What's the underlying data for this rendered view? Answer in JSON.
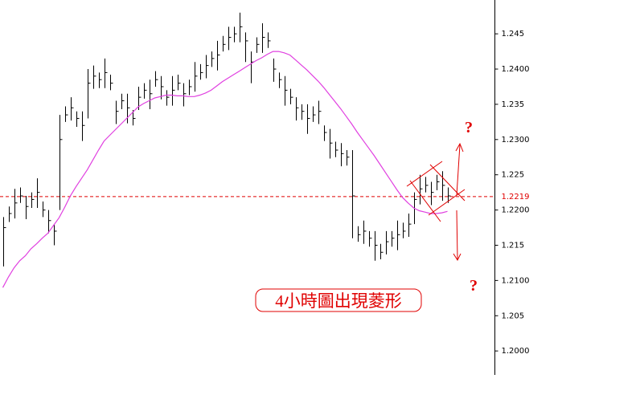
{
  "chart_data": {
    "type": "ohlc",
    "high": [
      1.219,
      1.2205,
      1.223,
      1.2232,
      1.222,
      1.2225,
      1.2245,
      1.2212,
      1.22,
      1.218,
      1.2335,
      1.2347,
      1.236,
      1.234,
      1.234,
      1.24,
      1.2405,
      1.2395,
      1.2415,
      1.2392,
      1.2355,
      1.2365,
      1.2365,
      1.2342,
      1.2375,
      1.238,
      1.2385,
      1.2397,
      1.239,
      1.237,
      1.239,
      1.2392,
      1.238,
      1.2385,
      1.241,
      1.2407,
      1.242,
      1.2425,
      1.244,
      1.2447,
      1.246,
      1.246,
      1.248,
      1.2452,
      1.2425,
      1.2445,
      1.2465,
      1.2452,
      1.2415,
      1.2395,
      1.239,
      1.2372,
      1.236,
      1.235,
      1.235,
      1.2347,
      1.2355,
      1.232,
      1.2315,
      1.2297,
      1.2295,
      1.2285,
      1.2285,
      1.2177,
      1.2185,
      1.217,
      1.217,
      1.2152,
      1.217,
      1.217,
      1.2185,
      1.2182,
      1.2195,
      1.2225,
      1.225,
      1.2247,
      1.224,
      1.225,
      1.2255,
      1.2232
    ],
    "low": [
      1.212,
      1.2183,
      1.2188,
      1.221,
      1.2187,
      1.2203,
      1.2203,
      1.219,
      1.2167,
      1.215,
      1.22,
      1.2325,
      1.2327,
      1.2318,
      1.2298,
      1.233,
      1.2372,
      1.2373,
      1.2373,
      1.237,
      1.2322,
      1.2343,
      1.2323,
      1.232,
      1.2342,
      1.2358,
      1.2343,
      1.2375,
      1.2357,
      1.2348,
      1.2348,
      1.237,
      1.2347,
      1.2363,
      1.2368,
      1.2385,
      1.2387,
      1.2403,
      1.2398,
      1.2425,
      1.2427,
      1.2438,
      1.2438,
      1.241,
      1.238,
      1.2423,
      1.2423,
      1.243,
      1.2382,
      1.2373,
      1.2348,
      1.235,
      1.2327,
      1.2328,
      1.2308,
      1.2325,
      1.2322,
      1.2298,
      1.2273,
      1.2275,
      1.2262,
      1.2263,
      1.216,
      1.2155,
      1.2152,
      1.2148,
      1.2128,
      1.213,
      1.2137,
      1.2148,
      1.2143,
      1.216,
      1.2162,
      1.218,
      1.2208,
      1.2225,
      1.2207,
      1.2228,
      1.2213,
      1.221
    ],
    "close": [
      1.2175,
      1.2195,
      1.221,
      1.222,
      1.2205,
      1.2215,
      1.2225,
      1.22,
      1.2185,
      1.217,
      1.23,
      1.2335,
      1.2345,
      1.233,
      1.232,
      1.238,
      1.239,
      1.2385,
      1.2395,
      1.238,
      1.234,
      1.2355,
      1.2345,
      1.233,
      1.236,
      1.237,
      1.2365,
      1.2385,
      1.2375,
      1.236,
      1.237,
      1.238,
      1.2365,
      1.2375,
      1.239,
      1.2395,
      1.2405,
      1.2415,
      1.242,
      1.2435,
      1.2445,
      1.245,
      1.246,
      1.244,
      1.241,
      1.2435,
      1.2445,
      1.244,
      1.24,
      1.2385,
      1.237,
      1.236,
      1.2345,
      1.234,
      1.233,
      1.2335,
      1.234,
      1.231,
      1.2295,
      1.2285,
      1.228,
      1.2275,
      1.222,
      1.2165,
      1.217,
      1.216,
      1.215,
      1.214,
      1.2155,
      1.216,
      1.2165,
      1.217,
      1.218,
      1.2215,
      1.223,
      1.2235,
      1.2225,
      1.224,
      1.2235,
      1.222
    ],
    "color": "#000000",
    "ma": [
      1.209,
      1.2105,
      1.2118,
      1.2128,
      1.2135,
      1.2145,
      1.2152,
      1.216,
      1.2167,
      1.2178,
      1.2189,
      1.2204,
      1.222,
      1.2233,
      1.2245,
      1.2257,
      1.2271,
      1.2285,
      1.2298,
      1.2306,
      1.2314,
      1.2322,
      1.233,
      1.2338,
      1.2346,
      1.2351,
      1.2355,
      1.2359,
      1.2361,
      1.2363,
      1.2363,
      1.2362,
      1.2362,
      1.2361,
      1.2361,
      1.2363,
      1.2366,
      1.237,
      1.2376,
      1.2382,
      1.2387,
      1.2392,
      1.2397,
      1.2402,
      1.2407,
      1.2412,
      1.2416,
      1.2421,
      1.2425,
      1.2425,
      1.2423,
      1.242,
      1.2413,
      1.2406,
      1.2399,
      1.2391,
      1.2383,
      1.2374,
      1.2364,
      1.2354,
      1.2344,
      1.2333,
      1.2322,
      1.231,
      1.2299,
      1.2288,
      1.2277,
      1.2265,
      1.2253,
      1.2241,
      1.2229,
      1.2218,
      1.221,
      1.2203,
      1.2199,
      1.2197,
      1.2195,
      1.2195,
      1.2196,
      1.2198
    ],
    "ma_color": "#e040e0",
    "ylim": [
      1.1966,
      1.2498
    ],
    "yticks": [
      {
        "value": 1.2,
        "label": "1.2000"
      },
      1.205,
      {
        "value": 1.21,
        "label": "1.2100"
      },
      1.215,
      {
        "value": 1.22,
        "label": "1.2200"
      },
      1.225,
      {
        "value": 1.23,
        "label": "1.2300"
      },
      1.235,
      {
        "value": 1.24,
        "label": "1.2400"
      },
      1.245
    ],
    "current_price": 1.2219,
    "current_price_color": "#e00000",
    "annotations": {
      "up": "?",
      "down": "?",
      "note": "4小時圖出現菱形"
    }
  }
}
